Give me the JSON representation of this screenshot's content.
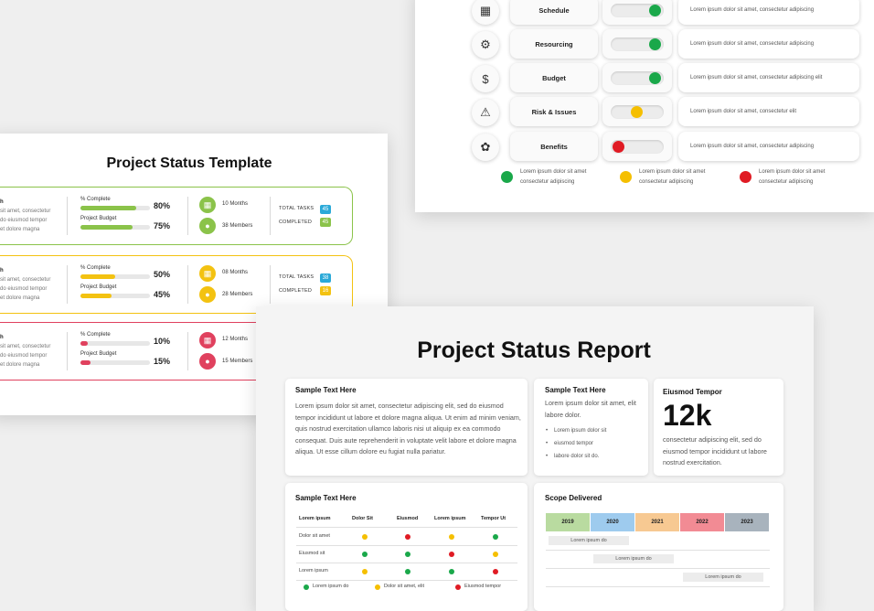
{
  "colors": {
    "green": "#1aa84a",
    "yellow": "#f5bf00",
    "red": "#e01b24",
    "tmpl_green": "#8bc34a",
    "tmpl_yellow": "#f3c211",
    "tmpl_red": "#e0415e",
    "blue_badge": "#2aa9d8"
  },
  "rag": {
    "rows": [
      {
        "icon": "schedule-icon",
        "glyph": "▦",
        "label": "Schedule",
        "status": "green",
        "desc": "Lorem ipsum dolor sit amet, consectetur adipiscing"
      },
      {
        "icon": "resourcing-icon",
        "glyph": "⚙",
        "label": "Resourcing",
        "status": "green",
        "desc": "Lorem ipsum dolor sit amet, consectetur adipiscing"
      },
      {
        "icon": "budget-icon",
        "glyph": "$",
        "label": "Budget",
        "status": "green",
        "desc": "Lorem ipsum dolor sit amet, consectetur adipiscing  elit"
      },
      {
        "icon": "warning-icon",
        "glyph": "⚠",
        "label": "Risk & Issues",
        "status": "yellow",
        "desc": "Lorem ipsum dolor sit amet, consectetur elit"
      },
      {
        "icon": "benefits-icon",
        "glyph": "✿",
        "label": "Benefits",
        "status": "red",
        "desc": "Lorem ipsum dolor sit amet, consectetur adipiscing"
      }
    ],
    "legend": [
      {
        "status": "green",
        "line1": "Lorem ipsum dolor sit amet",
        "line2": "consectetur adipiscing"
      },
      {
        "status": "yellow",
        "line1": "Lorem ipsum dolor sit amet",
        "line2": "consectetur adipiscing"
      },
      {
        "status": "red",
        "line1": "Lorem ipsum dolor sit amet",
        "line2": "consectetur adipiscing"
      }
    ]
  },
  "template": {
    "title": "Project Status Template",
    "cards": [
      {
        "color": "tmpl_green",
        "d1": "h",
        "d2": "sit amet, consectetur",
        "d3": "do eiusmod tempor",
        "d4": "et dolore magna",
        "complete_label": "% Complete",
        "complete": 80,
        "complete_text": "80%",
        "budget_label": "Project Budget",
        "budget": 75,
        "budget_text": "75%",
        "months": "10 Months",
        "members": "38 Members",
        "total_label": "TOTAL TASKS",
        "total": "45",
        "completed_label": "COMPLETED",
        "completed": "45",
        "total_color": "blue_badge",
        "completed_color": "tmpl_green"
      },
      {
        "color": "tmpl_yellow",
        "d1": "h",
        "d2": "sit amet, consectetur",
        "d3": "do eiusmod tempor",
        "d4": "et dolore magna",
        "complete_label": "% Complete",
        "complete": 50,
        "complete_text": "50%",
        "budget_label": "Project Budget",
        "budget": 45,
        "budget_text": "45%",
        "months": "08 Months",
        "members": "28 Members",
        "total_label": "TOTAL TASKS",
        "total": "38",
        "completed_label": "COMPLETED",
        "completed": "16",
        "total_color": "blue_badge",
        "completed_color": "tmpl_yellow"
      },
      {
        "color": "tmpl_red",
        "d1": "h",
        "d2": "sit amet, consectetur",
        "d3": "do eiusmod tempor",
        "d4": "et dolore magna",
        "complete_label": "% Complete",
        "complete": 10,
        "complete_text": "10%",
        "budget_label": "Project Budget",
        "budget": 15,
        "budget_text": "15%",
        "months": "12 Months",
        "members": "15 Members"
      }
    ]
  },
  "report": {
    "title": "Project Status Report",
    "c1": {
      "h": "Sample Text Here",
      "p": "Lorem ipsum dolor sit amet, consectetur adipiscing elit, sed do eiusmod tempor incididunt ut labore et dolore magna aliqua. Ut enim ad minim veniam, quis nostrud exercitation ullamco laboris nisi ut aliquip ex ea commodo consequat. Duis aute reprehenderit in voluptate velit labore et dolore magna aliqua. Ut esse cillum dolore eu fugiat nulla pariatur."
    },
    "c2": {
      "h": "Sample Text Here",
      "p": "Lorem ipsum dolor sit amet, elit labore dolor.",
      "bullets": [
        "Lorem ipsum dolor sit",
        "eiusmod tempor",
        "labore dolor sit do."
      ]
    },
    "c3": {
      "h": "Eiusmod  Tempor",
      "big": "12k",
      "p": "consectetur adipiscing elit, sed do eiusmod tempor incididunt ut labore nostrud exercitation."
    },
    "c4": {
      "h": "Sample Text Here",
      "cols": [
        "Lorem ipsum",
        "Dolor  Sit",
        "Eiusmod",
        "Lorem ipsum",
        "Tempor Ut"
      ],
      "rows": [
        {
          "label": "Dolor sit amet",
          "s": [
            "yellow",
            "red",
            "yellow",
            "green"
          ]
        },
        {
          "label": "Eiusmod sit",
          "s": [
            "green",
            "green",
            "red",
            "yellow"
          ]
        },
        {
          "label": "Lorem ipsum",
          "s": [
            "yellow",
            "green",
            "green",
            "red"
          ]
        }
      ],
      "legend": [
        {
          "status": "green",
          "text": "Lorem ipsum do"
        },
        {
          "status": "yellow",
          "text": "Dolor sit amet, elit"
        },
        {
          "status": "red",
          "text": "Eiusmod tempor"
        }
      ]
    },
    "c5": {
      "h": "Scope Delivered",
      "years": [
        {
          "label": "2019",
          "color": "#b9dba0"
        },
        {
          "label": "2020",
          "color": "#9ecbee"
        },
        {
          "label": "2021",
          "color": "#f7c992"
        },
        {
          "label": "2022",
          "color": "#f28b94"
        },
        {
          "label": "2023",
          "color": "#a8b3bd"
        }
      ],
      "bars": [
        {
          "text": "Lorem ipsum do",
          "start": 0,
          "span": 2
        },
        {
          "text": "Lorem ipsum do",
          "start": 1,
          "span": 2
        },
        {
          "text": "Lorem ipsum do",
          "start": 3,
          "span": 2
        }
      ]
    }
  }
}
